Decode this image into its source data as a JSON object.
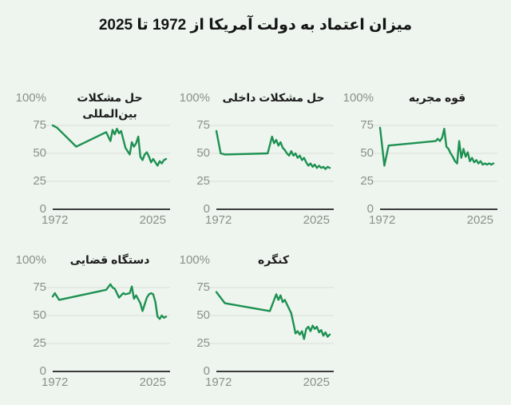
{
  "page": {
    "title": "میزان اعتماد به دولت آمریکا از 1972 تا 2025",
    "background": "#eef5ee",
    "line_color": "#1d9152",
    "grid_color": "#d9ded8",
    "axis_color": "#3b3b3b",
    "tick_color": "#8a8f8a",
    "title_color": "#141414"
  },
  "axis": {
    "y_top_label": "100%",
    "y_ticks": [
      "75",
      "50",
      "25",
      "0"
    ],
    "x_start": "1972",
    "x_end": "2025"
  },
  "chart_data": [
    {
      "type": "line",
      "id": "international-problems",
      "title": "حل مشکلات بین‌المللی",
      "xlim": [
        1972,
        2025
      ],
      "ylim": [
        0,
        100
      ],
      "gridlines": [
        25,
        50,
        75
      ],
      "legend": "none",
      "x": [
        1972,
        1974,
        1983,
        1997,
        1999,
        2000,
        2001,
        2002,
        2003,
        2004,
        2006,
        2007,
        2008,
        2009,
        2010,
        2011,
        2012,
        2013,
        2014,
        2015,
        2016,
        2017,
        2018,
        2019,
        2021,
        2022,
        2023,
        2024,
        2025
      ],
      "y": [
        75,
        73,
        56,
        69,
        61,
        71,
        67,
        72,
        68,
        70,
        55,
        52,
        49,
        60,
        56,
        59,
        65,
        47,
        44,
        49,
        51,
        47,
        42,
        45,
        39,
        43,
        41,
        44,
        45
      ]
    },
    {
      "type": "line",
      "id": "domestic-problems",
      "title": "حل مشکلات داخلی",
      "xlim": [
        1972,
        2025
      ],
      "ylim": [
        0,
        100
      ],
      "gridlines": [
        25,
        50,
        75
      ],
      "legend": "none",
      "x": [
        1972,
        1974,
        1976,
        1996,
        1998,
        1999,
        2000,
        2001,
        2002,
        2003,
        2004,
        2005,
        2006,
        2007,
        2008,
        2009,
        2010,
        2011,
        2012,
        2013,
        2014,
        2015,
        2016,
        2017,
        2018,
        2019,
        2020,
        2021,
        2022,
        2023,
        2024,
        2025
      ],
      "y": [
        70,
        50,
        49,
        50,
        65,
        59,
        62,
        57,
        60,
        55,
        53,
        50,
        48,
        52,
        48,
        50,
        46,
        48,
        44,
        46,
        42,
        39,
        41,
        38,
        40,
        37,
        39,
        37,
        38,
        36,
        38,
        37
      ]
    },
    {
      "type": "line",
      "id": "executive-branch",
      "title": "قوه مجریه",
      "xlim": [
        1972,
        2025
      ],
      "ylim": [
        0,
        100
      ],
      "gridlines": [
        25,
        50,
        75
      ],
      "legend": "none",
      "x": [
        1972,
        1974,
        1976,
        1998,
        1999,
        2000,
        2001,
        2002,
        2003,
        2004,
        2005,
        2006,
        2007,
        2008,
        2009,
        2010,
        2011,
        2012,
        2013,
        2014,
        2015,
        2016,
        2017,
        2018,
        2019,
        2020,
        2021,
        2022,
        2023,
        2024,
        2025
      ],
      "y": [
        73,
        39,
        57,
        61,
        63,
        61,
        64,
        72,
        56,
        54,
        50,
        47,
        43,
        41,
        61,
        46,
        54,
        47,
        51,
        43,
        46,
        42,
        44,
        41,
        43,
        40,
        41,
        40,
        41,
        40,
        41
      ]
    },
    {
      "type": "line",
      "id": "judicial-branch",
      "title": "دستگاه قضایی",
      "xlim": [
        1972,
        2025
      ],
      "ylim": [
        0,
        100
      ],
      "gridlines": [
        25,
        50,
        75
      ],
      "legend": "none",
      "x": [
        1972,
        1973,
        1975,
        1997,
        1999,
        2000,
        2001,
        2003,
        2004,
        2005,
        2006,
        2008,
        2009,
        2010,
        2011,
        2013,
        2014,
        2015,
        2016,
        2017,
        2018,
        2019,
        2020,
        2021,
        2022,
        2023,
        2024,
        2025
      ],
      "y": [
        67,
        70,
        64,
        73,
        78,
        75,
        74,
        66,
        68,
        70,
        69,
        70,
        76,
        65,
        68,
        61,
        54,
        60,
        66,
        69,
        70,
        69,
        62,
        49,
        47,
        50,
        48,
        49
      ]
    },
    {
      "type": "line",
      "id": "congress",
      "title": "کنگره",
      "xlim": [
        1972,
        2025
      ],
      "ylim": [
        0,
        100
      ],
      "gridlines": [
        25,
        50,
        75
      ],
      "legend": "none",
      "x": [
        1972,
        1976,
        1985,
        1997,
        2000,
        2001,
        2002,
        2003,
        2004,
        2006,
        2007,
        2008,
        2009,
        2010,
        2011,
        2012,
        2013,
        2014,
        2015,
        2016,
        2017,
        2018,
        2019,
        2020,
        2021,
        2022,
        2023,
        2024,
        2025
      ],
      "y": [
        71,
        61,
        58,
        54,
        69,
        64,
        68,
        62,
        64,
        56,
        52,
        43,
        34,
        36,
        33,
        36,
        29,
        38,
        40,
        36,
        41,
        38,
        40,
        35,
        37,
        32,
        35,
        31,
        33
      ]
    }
  ]
}
